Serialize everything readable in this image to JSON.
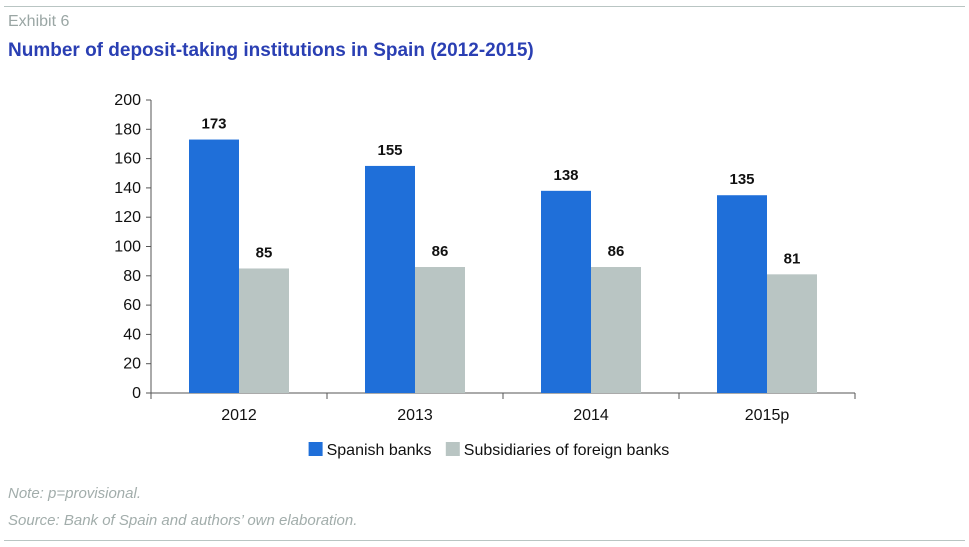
{
  "exhibit_label": "Exhibit 6",
  "notes": {
    "note": "Note: p=provisional.",
    "source": "Source: Bank of Spain and authors’ own elaboration."
  },
  "chart_data": {
    "type": "bar",
    "title": "Number of deposit-taking institutions in Spain (2012-2015)",
    "xlabel": "",
    "ylabel": "",
    "ylim": [
      0,
      200
    ],
    "yticks": [
      0,
      20,
      40,
      60,
      80,
      100,
      120,
      140,
      160,
      180,
      200
    ],
    "grid": false,
    "legend_position": "bottom",
    "categories": [
      "2012",
      "2013",
      "2014",
      "2015p"
    ],
    "series": [
      {
        "name": "Spanish banks",
        "values": [
          173,
          155,
          138,
          135
        ],
        "color": "#1f6fd9"
      },
      {
        "name": "Subsidiaries of foreign banks",
        "values": [
          85,
          86,
          86,
          81
        ],
        "color": "#b9c5c3"
      }
    ]
  }
}
